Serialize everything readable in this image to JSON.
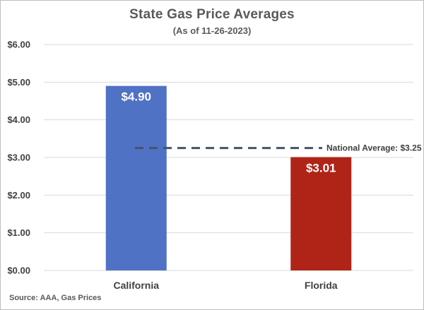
{
  "chart_data": {
    "type": "bar",
    "title": "State Gas Price Averages",
    "subtitle": "(As of 11-26-2023)",
    "source": "Source: AAA, Gas Prices",
    "categories": [
      "California",
      "Florida"
    ],
    "values": [
      4.9,
      3.01
    ],
    "data_labels": [
      "$4.90",
      "$3.01"
    ],
    "bar_colors": [
      "#4f72c4",
      "#b02418"
    ],
    "ylim": [
      0,
      6
    ],
    "yticks": [
      0,
      1,
      2,
      3,
      4,
      5,
      6
    ],
    "ytick_labels": [
      "$0.00",
      "$1.00",
      "$2.00",
      "$3.00",
      "$4.00",
      "$5.00",
      "$6.00"
    ],
    "grid": true,
    "grid_color": "#d9d9d9",
    "xlabel": "",
    "ylabel": "",
    "reference_line": {
      "value": 3.25,
      "label": "National Average: $3.25",
      "color": "#44546a",
      "style": "dashed"
    }
  }
}
